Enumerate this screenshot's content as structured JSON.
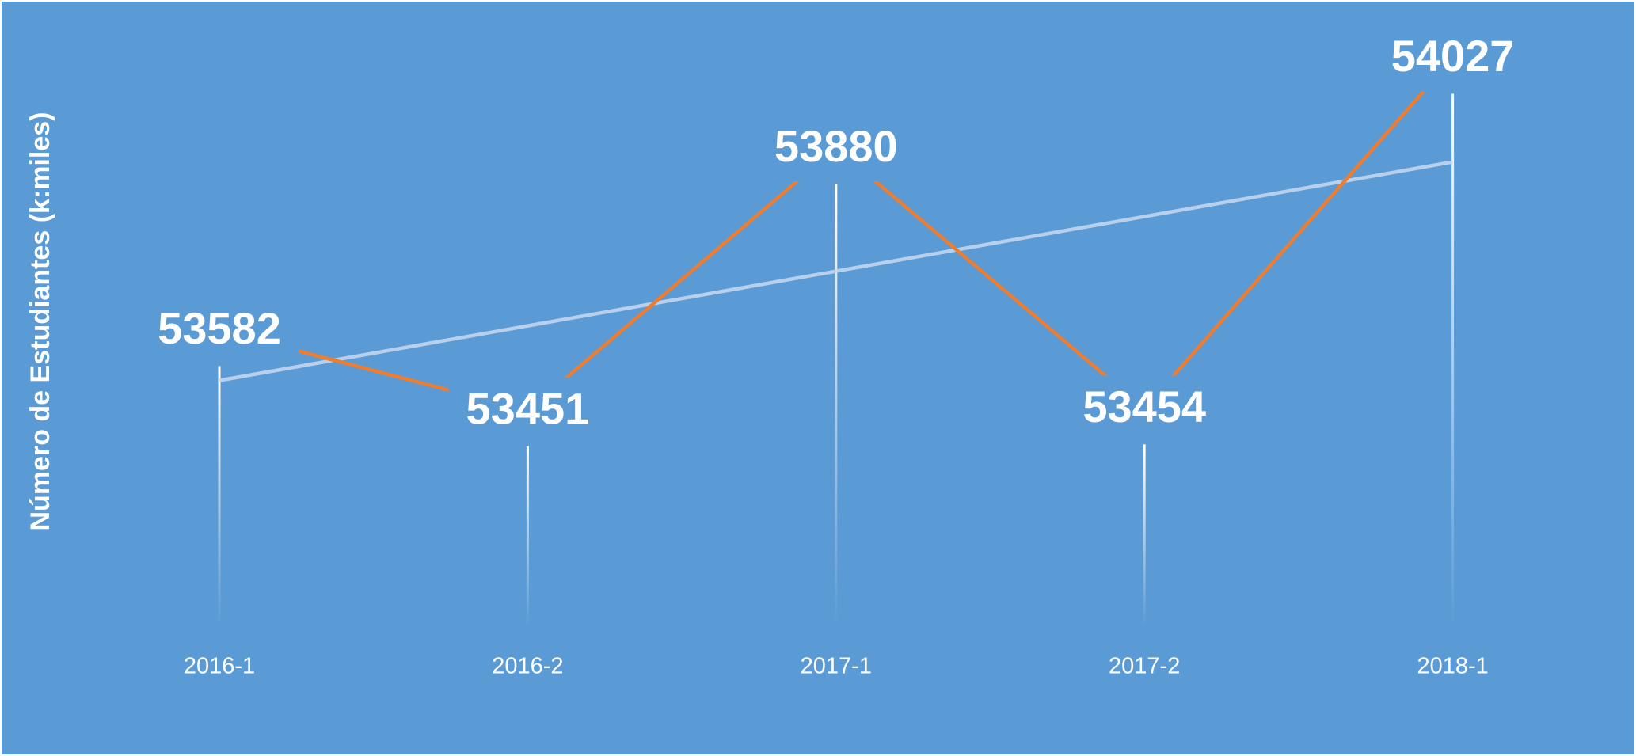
{
  "chart_data": {
    "type": "line",
    "y_label": "Número de Estudiantes  (k:miles)",
    "categories": [
      "2016-1",
      "2016-2",
      "2017-1",
      "2017-2",
      "2018-1"
    ],
    "series": [
      {
        "values": [
          53582,
          53451,
          53880,
          53454,
          54027
        ],
        "color": "#ed7d31"
      }
    ],
    "ylim": [
      53100,
      54100
    ],
    "trendline": true,
    "trendline_color": "#c9d9ee",
    "drop_lines": true,
    "data_labels": true
  }
}
